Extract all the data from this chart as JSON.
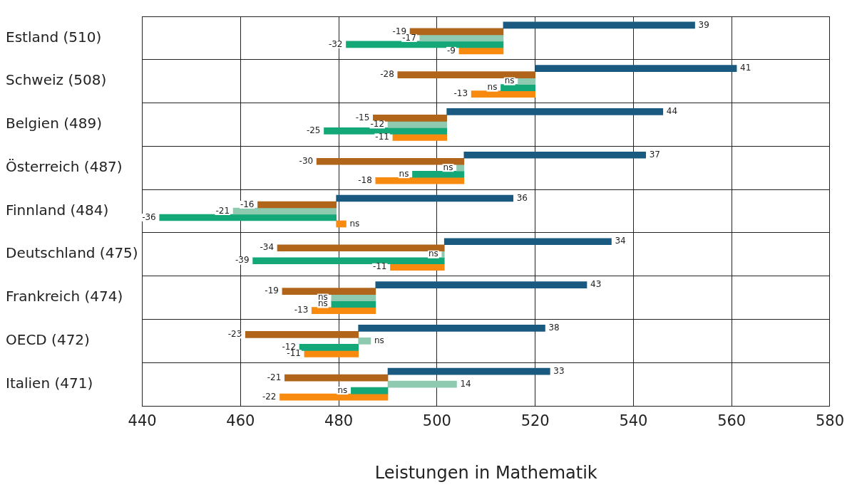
{
  "chart_data": {
    "type": "bar",
    "orientation": "horizontal",
    "xlabel": "Leistungen in Mathematik",
    "categories": [
      "Estland (510)",
      "Schweiz (508)",
      "Belgien (489)",
      "Österreich (487)",
      "Finnland (484)",
      "Deutschland (475)",
      "Frankreich (474)",
      "OECD (472)",
      "Italien (471)"
    ],
    "series": [
      {
        "base": [
          513.5,
          520,
          502,
          505.5,
          479.5,
          501.5,
          487.5,
          484,
          490
        ],
        "color": "#1a5a80",
        "values": [
          39,
          41,
          44,
          37,
          36,
          34,
          43,
          38,
          33
        ],
        "value_labels": [
          "39",
          "41",
          "44",
          "37",
          "36",
          "34",
          "43",
          "38",
          "33"
        ]
      },
      {
        "base": [
          513.5,
          520,
          502,
          505.5,
          479.5,
          501.5,
          487.5,
          484,
          490
        ],
        "color": "#b0651a",
        "values": [
          -19,
          -28,
          -15,
          -30,
          -16,
          -34,
          -19,
          -23,
          -21
        ],
        "value_labels": [
          "-19",
          "-28",
          "-15",
          "-30",
          "-16",
          "-34",
          "-19",
          "-23",
          "-21"
        ]
      },
      {
        "base": [
          513.5,
          520,
          502,
          505.5,
          479.5,
          501.5,
          487.5,
          484,
          490
        ],
        "color": "#8ecab0",
        "values": [
          -17,
          -3.5,
          -12,
          -1.5,
          -21,
          -0.5,
          -9,
          2.5,
          14
        ],
        "value_labels": [
          "-17",
          "ns",
          "-12",
          "ns",
          "-21",
          "ns",
          "ns",
          "ns",
          "14"
        ]
      },
      {
        "base": [
          513.5,
          520,
          502,
          505.5,
          479.5,
          501.5,
          487.5,
          484,
          490
        ],
        "color": "#14a878",
        "values": [
          -32,
          -7,
          -25,
          -10.5,
          -36,
          -39,
          -9,
          -12,
          -7.5
        ],
        "value_labels": [
          "-32",
          "ns",
          "-25",
          "ns",
          "-36",
          "-39",
          "ns",
          "-12",
          "ns"
        ]
      },
      {
        "base": [
          513.5,
          520,
          502,
          505.5,
          479.5,
          501.5,
          487.5,
          484,
          490
        ],
        "color": "#f98a10",
        "values": [
          -9,
          -13,
          -11,
          -18,
          2,
          -11,
          -13,
          -11,
          -22
        ],
        "value_labels": [
          "-9",
          "-13",
          "-11",
          "-18",
          "ns",
          "-11",
          "-13",
          "-11",
          "-22"
        ]
      }
    ],
    "xlim": [
      440,
      580
    ],
    "xticks": [
      440,
      460,
      480,
      500,
      520,
      540,
      560,
      580
    ],
    "grid": true,
    "legend": false
  }
}
